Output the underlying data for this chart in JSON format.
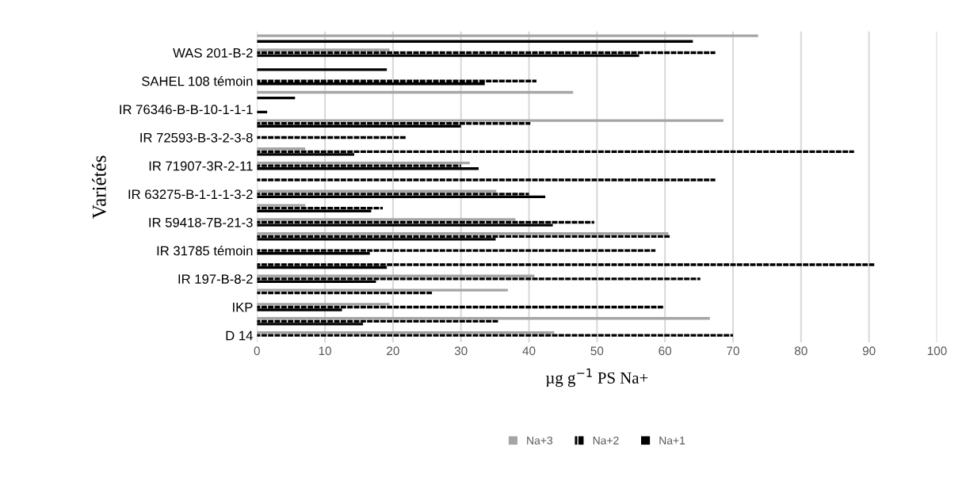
{
  "chart_data": {
    "type": "bar",
    "orientation": "horizontal",
    "xlabel": "µg g$^{−1}$ PS Na+",
    "ylabel": "Variétés",
    "categories": [
      null,
      "WAS 201-B-2",
      null,
      "SAHEL 108 témoin",
      null,
      "IR 76346-B-B-10-1-1-1",
      null,
      "IR 72593-B-3-2-3-8",
      null,
      "IR 71907-3R-2-11",
      null,
      "IR 63275-B-1-1-1-3-2",
      null,
      "IR 59418-7B-21-3",
      null,
      "IR 31785 témoin",
      null,
      "IR 197-B-8-2",
      null,
      "IKP",
      null,
      "D 14"
    ],
    "series": [
      {
        "name": "Na+3",
        "color": "#a5a5a5",
        "values": [
          73.7,
          19.5,
          0,
          0,
          46.5,
          0,
          68.6,
          0,
          7.1,
          31.3,
          0,
          35.2,
          7.1,
          38.0,
          60.5,
          0,
          0,
          40.8,
          36.9,
          19.5,
          66.6,
          43.7
        ]
      },
      {
        "name": "Na+2",
        "color": "#000000",
        "values": [
          0,
          67.4,
          0,
          41.1,
          0,
          0,
          40.2,
          21.9,
          87.8,
          30.0,
          67.4,
          40.0,
          18.5,
          49.6,
          60.7,
          58.6,
          90.8,
          65.2,
          25.8,
          59.8,
          35.5,
          70.0
        ]
      },
      {
        "name": "Na+1",
        "color": "#000000",
        "values": [
          64.1,
          56.2,
          19.1,
          33.5,
          5.6,
          1.5,
          30.0,
          0,
          14.3,
          32.6,
          0,
          42.4,
          16.8,
          43.5,
          35.1,
          16.6,
          19.1,
          17.5,
          0,
          12.5,
          15.6,
          0
        ]
      }
    ],
    "xlim": [
      0,
      100
    ],
    "xticks": [
      0,
      10,
      20,
      30,
      40,
      50,
      60,
      70,
      80,
      90,
      100
    ],
    "grid": "x",
    "legend": "bottom"
  }
}
